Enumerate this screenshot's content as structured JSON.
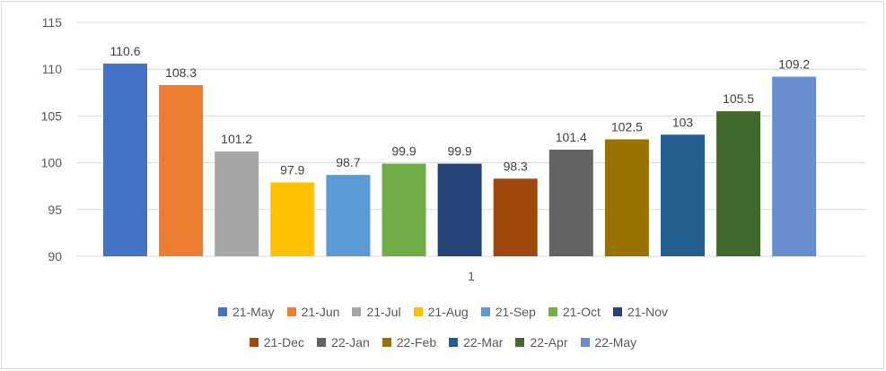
{
  "chart_data": {
    "type": "bar",
    "title": "",
    "xlabel": "",
    "ylabel": "",
    "categories": [
      "1"
    ],
    "ylim": [
      90,
      115
    ],
    "yticks": [
      90,
      95,
      100,
      105,
      110,
      115
    ],
    "grid": true,
    "legend_position": "bottom",
    "series": [
      {
        "name": "21-May",
        "values": [
          110.6
        ],
        "color": "#4472C4"
      },
      {
        "name": "21-Jun",
        "values": [
          108.3
        ],
        "color": "#ED7D31"
      },
      {
        "name": "21-Jul",
        "values": [
          101.2
        ],
        "color": "#A5A5A5"
      },
      {
        "name": "21-Aug",
        "values": [
          97.9
        ],
        "color": "#FFC000"
      },
      {
        "name": "21-Sep",
        "values": [
          98.7
        ],
        "color": "#5B9BD5"
      },
      {
        "name": "21-Oct",
        "values": [
          99.9
        ],
        "color": "#70AD47"
      },
      {
        "name": "21-Nov",
        "values": [
          99.9
        ],
        "color": "#264478"
      },
      {
        "name": "21-Dec",
        "values": [
          98.3
        ],
        "color": "#9E480E"
      },
      {
        "name": "22-Jan",
        "values": [
          101.4
        ],
        "color": "#636363"
      },
      {
        "name": "22-Feb",
        "values": [
          102.5
        ],
        "color": "#997300"
      },
      {
        "name": "22-Mar",
        "values": [
          103
        ],
        "color": "#255E91"
      },
      {
        "name": "22-Apr",
        "values": [
          105.5
        ],
        "color": "#43682B"
      },
      {
        "name": "22-May",
        "values": [
          109.2
        ],
        "color": "#698ED0"
      }
    ]
  }
}
